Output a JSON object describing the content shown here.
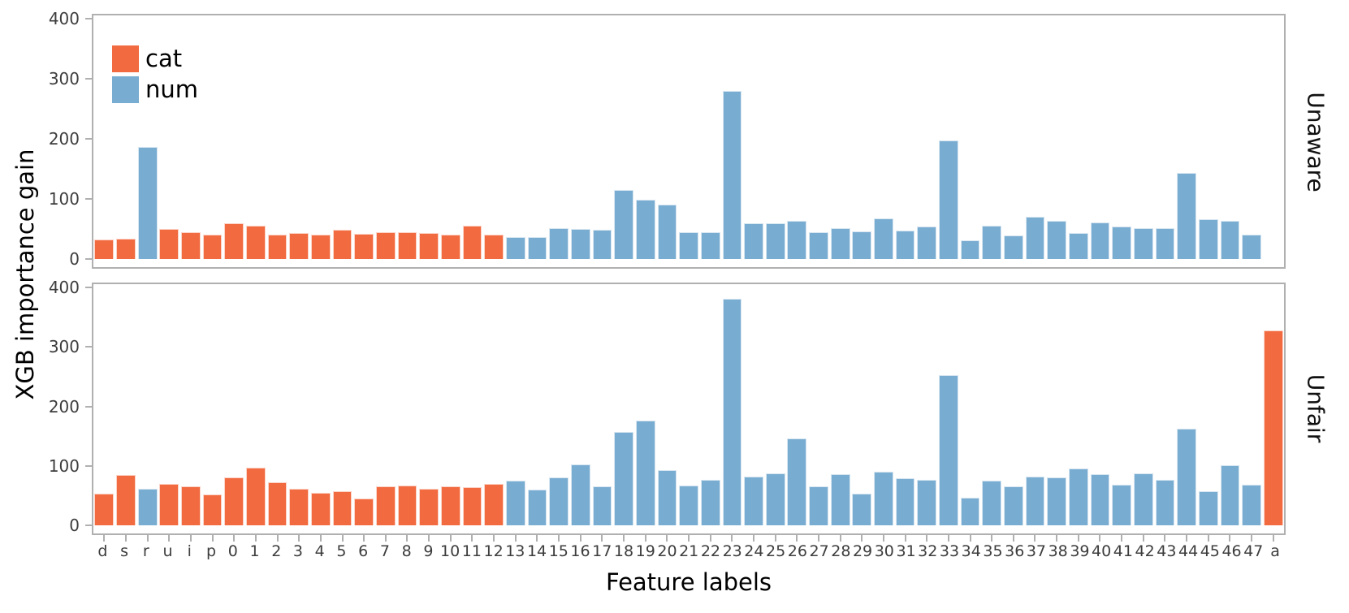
{
  "chart_data": {
    "type": "bar",
    "xlabel": "Feature labels",
    "ylabel": "XGB importance gain",
    "ylim": [
      0,
      400
    ],
    "yticks": [
      0,
      100,
      200,
      300,
      400
    ],
    "grid": false,
    "legend": [
      "cat",
      "num"
    ],
    "legend_position": "upper left",
    "group_colors": {
      "cat": "#f26a3f",
      "num": "#79acd1"
    },
    "categories": [
      "d",
      "s",
      "r",
      "u",
      "i",
      "p",
      "0",
      "1",
      "2",
      "3",
      "4",
      "5",
      "6",
      "7",
      "8",
      "9",
      "10",
      "11",
      "12",
      "13",
      "14",
      "15",
      "16",
      "17",
      "18",
      "19",
      "20",
      "21",
      "22",
      "23",
      "24",
      "25",
      "26",
      "27",
      "28",
      "29",
      "30",
      "31",
      "32",
      "33",
      "34",
      "35",
      "36",
      "37",
      "38",
      "39",
      "40",
      "41",
      "42",
      "43",
      "44",
      "45",
      "46",
      "47",
      "a"
    ],
    "bar_groups": [
      "cat",
      "cat",
      "num",
      "cat",
      "cat",
      "cat",
      "cat",
      "cat",
      "cat",
      "cat",
      "cat",
      "cat",
      "cat",
      "cat",
      "cat",
      "cat",
      "cat",
      "cat",
      "cat",
      "num",
      "num",
      "num",
      "num",
      "num",
      "num",
      "num",
      "num",
      "num",
      "num",
      "num",
      "num",
      "num",
      "num",
      "num",
      "num",
      "num",
      "num",
      "num",
      "num",
      "num",
      "num",
      "num",
      "num",
      "num",
      "num",
      "num",
      "num",
      "num",
      "num",
      "num",
      "num",
      "num",
      "num",
      "num",
      "cat"
    ],
    "subplots": [
      {
        "title": "Unaware",
        "values": [
          33,
          34,
          187,
          50,
          45,
          40,
          59,
          55,
          41,
          43,
          40,
          48,
          42,
          45,
          44,
          43,
          40,
          56,
          40,
          37,
          36,
          52,
          50,
          49,
          115,
          98,
          90,
          44,
          44,
          280,
          59,
          60,
          64,
          45,
          51,
          46,
          68,
          47,
          54,
          197,
          31,
          55,
          39,
          70,
          63,
          43,
          61,
          54,
          51,
          52,
          143,
          66,
          64,
          41,
          null
        ]
      },
      {
        "title": "Unfair",
        "values": [
          53,
          84,
          61,
          70,
          66,
          52,
          80,
          97,
          72,
          61,
          55,
          58,
          45,
          65,
          67,
          61,
          65,
          64,
          70,
          75,
          60,
          81,
          103,
          65,
          157,
          176,
          93,
          67,
          76,
          381,
          82,
          87,
          146,
          66,
          86,
          53,
          90,
          79,
          77,
          253,
          46,
          75,
          65,
          82,
          81,
          95,
          86,
          68,
          88,
          77,
          163,
          57,
          101,
          68,
          327
        ]
      }
    ]
  }
}
